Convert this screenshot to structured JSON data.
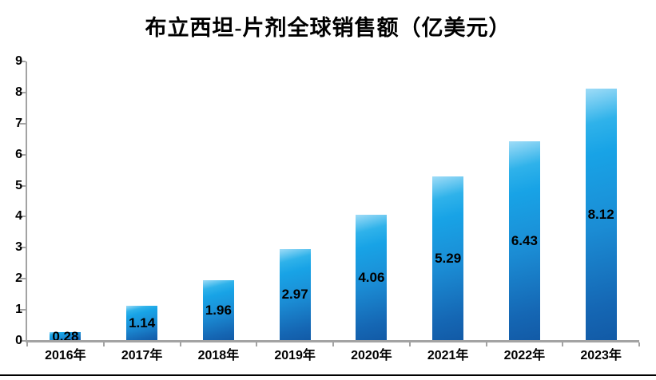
{
  "title": "布立西坦-片剂全球销售额（亿美元）",
  "chart_data": {
    "type": "bar",
    "title": "布立西坦-片剂全球销售额（亿美元）",
    "categories": [
      "2016年",
      "2017年",
      "2018年",
      "2019年",
      "2020年",
      "2021年",
      "2022年",
      "2023年"
    ],
    "values": [
      0.28,
      1.14,
      1.96,
      2.97,
      4.06,
      5.29,
      6.43,
      8.12
    ],
    "data_labels": [
      "0.28",
      "1.14",
      "1.96",
      "2.97",
      "4.06",
      "5.29",
      "6.43",
      "8.12"
    ],
    "xlabel": "",
    "ylabel": "",
    "ylim": [
      0,
      9
    ],
    "y_ticks": [
      0,
      1,
      2,
      3,
      4,
      5,
      6,
      7,
      8,
      9
    ],
    "grid": "off",
    "legend": "none",
    "data_label_position": "center"
  },
  "colors": {
    "bar_top": "#18a3e6",
    "bar_bottom": "#125aa6",
    "bar_highlight": "#9fdcf7",
    "axis_line": "#a3a3a3",
    "tick_label": "#000000",
    "data_label": "#000000",
    "title": "#000000",
    "bottom_rule": "#000000"
  }
}
